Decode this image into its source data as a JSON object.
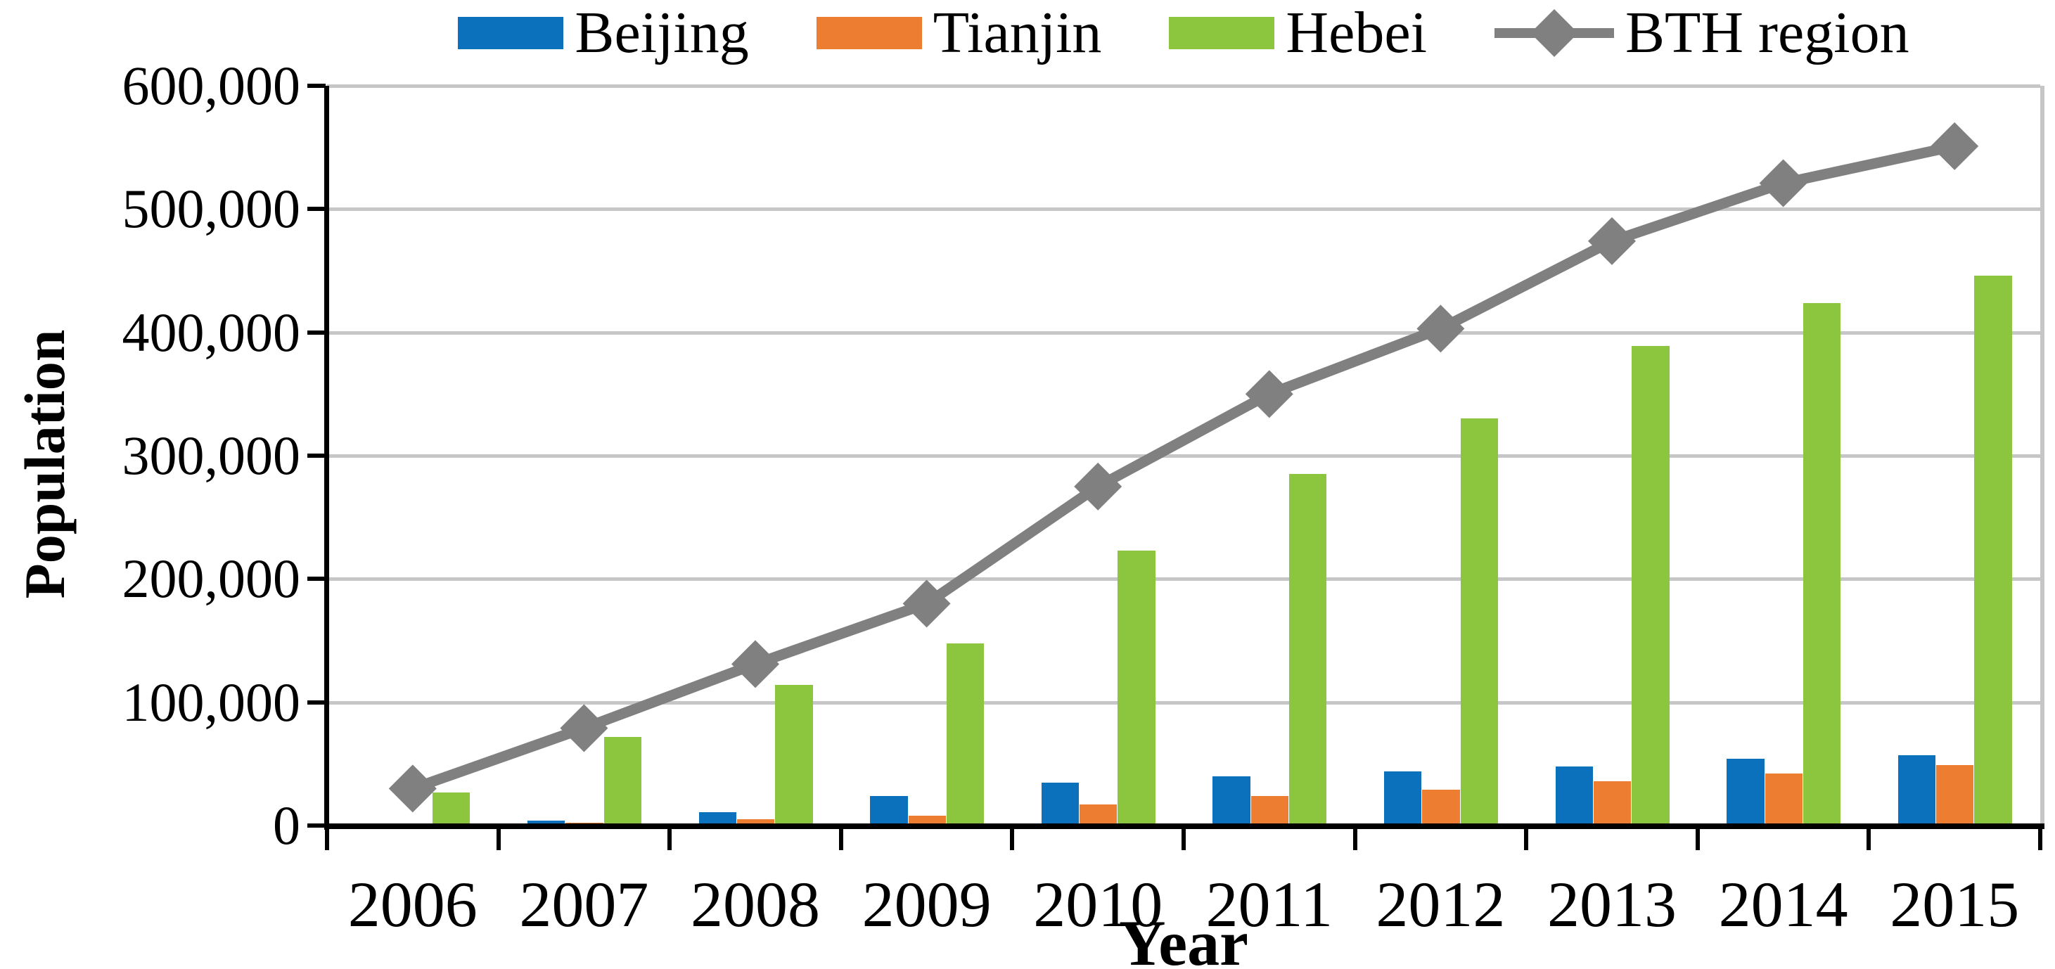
{
  "chart_data": {
    "type": "bar+line",
    "title": "",
    "xlabel": "Year",
    "ylabel": "Population",
    "categories": [
      "2006",
      "2007",
      "2008",
      "2009",
      "2010",
      "2011",
      "2012",
      "2013",
      "2014",
      "2015"
    ],
    "series": [
      {
        "name": "Beijing",
        "kind": "bar",
        "color": "#0c71bd",
        "values": [
          1000,
          4000,
          11000,
          24000,
          35000,
          40000,
          44000,
          48000,
          54000,
          57000
        ]
      },
      {
        "name": "Tianjin",
        "kind": "bar",
        "color": "#ed7d31",
        "values": [
          300,
          2500,
          5000,
          8000,
          17000,
          24000,
          29000,
          36000,
          42000,
          49000
        ]
      },
      {
        "name": "Hebei",
        "kind": "bar",
        "color": "#8cc63f",
        "values": [
          27000,
          72000,
          114000,
          148000,
          223000,
          285000,
          330000,
          389000,
          424000,
          446000
        ]
      },
      {
        "name": "BTH region",
        "kind": "line",
        "marker": "diamond",
        "color": "#808080",
        "values": [
          30000,
          79000,
          131000,
          180000,
          275000,
          350000,
          403000,
          474000,
          521000,
          551000
        ]
      }
    ],
    "ylim": [
      0,
      600000
    ],
    "ytick_interval": 100000,
    "ytick_labels": [
      "0",
      "100,000",
      "200,000",
      "300,000",
      "400,000",
      "500,000",
      "600,000"
    ],
    "grid": "horizontal",
    "legend_position": "top",
    "colors": {
      "gridline": "#c6c6c6",
      "axis": "#000000",
      "plot_border": "#c6c6c6"
    }
  }
}
